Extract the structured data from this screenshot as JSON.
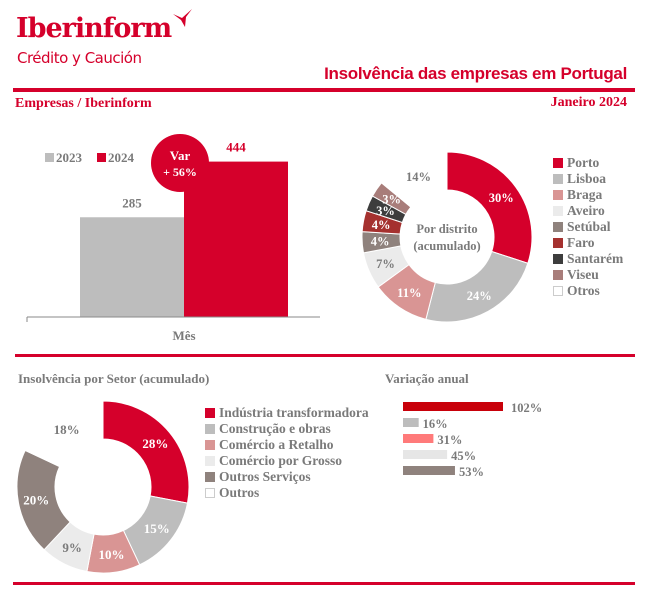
{
  "brand": {
    "name": "Iberinform",
    "tagline": "Crédito y Caución",
    "color": "#d5002b"
  },
  "header": {
    "title": "Insolvência das empresas em Portugal",
    "left_label": "Empresas / Iberinform",
    "right_label": "Janeiro 2024"
  },
  "sections": {
    "sector_title": "Insolvência por Setor (acumulado)",
    "variation_title": "Variação anual"
  },
  "chart_data": [
    {
      "type": "bar",
      "title": "",
      "categories": [
        "Mês"
      ],
      "series": [
        {
          "name": "2023",
          "values": [
            285
          ],
          "color": "#bdbdbd",
          "label_color": "#7a7a7a"
        },
        {
          "name": "2024",
          "values": [
            444
          ],
          "color": "#d5002b",
          "label_color": "#d5002b"
        }
      ],
      "value_labels": [
        "285",
        "444"
      ],
      "xlabel": "Mês",
      "ylabel": "",
      "ylim": [
        0,
        500
      ],
      "grid": false,
      "legend": "top-left",
      "legend_labels": [
        "2023",
        "2024"
      ],
      "annotation": {
        "line1": "Var",
        "line2": "+ 56%"
      }
    },
    {
      "type": "pie",
      "variant": "donut",
      "center_label": [
        "Por distrito",
        "(acumulado)"
      ],
      "labels": [
        "Porto",
        "Lisboa",
        "Braga",
        "Aveiro",
        "Setúbal",
        "Faro",
        "Santarém",
        "Viseu",
        "Otros"
      ],
      "values": [
        30,
        24,
        11,
        7,
        4,
        4,
        3,
        3,
        14
      ],
      "value_labels": [
        "30%",
        "24%",
        "11%",
        "7%",
        "4%",
        "4%",
        "3%",
        "3%",
        "14%"
      ],
      "colors": [
        "#d5002b",
        "#bdbdbd",
        "#d99594",
        "#ebebeb",
        "#8f827d",
        "#a5312f",
        "#3d3d3d",
        "#a87d7a",
        "#ffffff"
      ],
      "label_colors": [
        "#ffffff",
        "#ffffff",
        "#ffffff",
        "#7a7a7a",
        "#ffffff",
        "#ffffff",
        "#ffffff",
        "#ffffff",
        "#7a7a7a"
      ],
      "legend": "right"
    },
    {
      "type": "pie",
      "variant": "donut",
      "title": "Insolvência por Setor (acumulado)",
      "labels": [
        "Indústria transformadora",
        "Construção e obras",
        "Comércio a Retalho",
        "Comércio por Grosso",
        "Outros Serviços",
        "Outros"
      ],
      "values": [
        28,
        15,
        10,
        9,
        20,
        18
      ],
      "value_labels": [
        "28%",
        "15%",
        "10%",
        "9%",
        "20%",
        "18%"
      ],
      "colors": [
        "#d5002b",
        "#bdbdbd",
        "#d99594",
        "#ebebeb",
        "#8f827d",
        "#ffffff"
      ],
      "label_colors": [
        "#ffffff",
        "#ffffff",
        "#ffffff",
        "#7a7a7a",
        "#ffffff",
        "#7a7a7a"
      ],
      "legend": "right"
    },
    {
      "type": "bar",
      "orientation": "horizontal",
      "title": "Variação anual",
      "categories": [
        "Indústria transformadora",
        "Construção e obras",
        "Comércio a Retalho",
        "Comércio por Grosso",
        "Outros Serviços"
      ],
      "values": [
        102,
        16,
        31,
        45,
        53
      ],
      "value_labels": [
        "102%",
        "16%",
        "31%",
        "45%",
        "53%"
      ],
      "colors": [
        "#c8000a",
        "#bdbdbd",
        "#ff7a7a",
        "#e6e6e6",
        "#8f827d"
      ],
      "xlim": [
        0,
        102
      ]
    }
  ]
}
